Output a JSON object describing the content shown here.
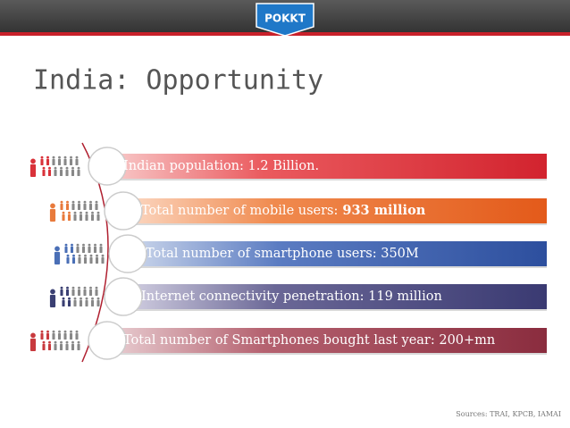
{
  "logo": "POKKT",
  "title": "India: Opportunity",
  "items": [
    {
      "text": "Indian population: 1.2 Billion."
    },
    {
      "text": "Total number of mobile users:",
      "bold": "933 million"
    },
    {
      "text": "Total number of smartphone users: 350M"
    },
    {
      "text": "Internet connectivity penetration: 119 million"
    },
    {
      "text": "Total number of Smartphones bought last year: 200+mn"
    }
  ],
  "source": "Sources: TRAI, KPCB, IAMAI"
}
